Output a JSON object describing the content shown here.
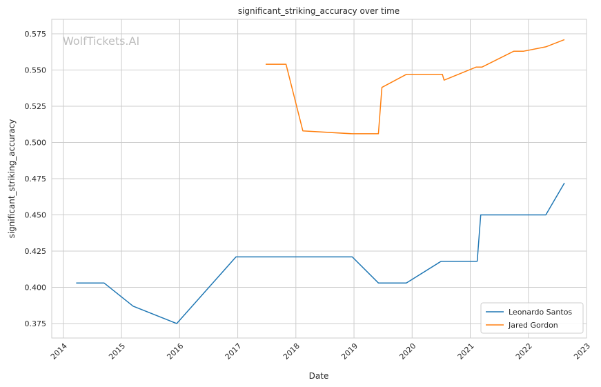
{
  "chart_data": {
    "type": "line",
    "title": "significant_striking_accuracy over time",
    "xlabel": "Date",
    "ylabel": "significant_striking_accuracy",
    "watermark": "WolfTickets.AI",
    "xlim": [
      2013.8,
      2023.0
    ],
    "ylim": [
      0.365,
      0.585
    ],
    "x_ticks": [
      2014,
      2015,
      2016,
      2017,
      2018,
      2019,
      2020,
      2021,
      2022,
      2023
    ],
    "x_tick_labels": [
      "2014",
      "2015",
      "2016",
      "2017",
      "2018",
      "2019",
      "2020",
      "2021",
      "2022",
      "2023"
    ],
    "y_ticks": [
      0.375,
      0.4,
      0.425,
      0.45,
      0.475,
      0.5,
      0.525,
      0.55,
      0.575
    ],
    "y_tick_labels": [
      "0.375",
      "0.400",
      "0.425",
      "0.450",
      "0.475",
      "0.500",
      "0.525",
      "0.550",
      "0.575"
    ],
    "grid": true,
    "legend_position": "lower-right",
    "series": [
      {
        "name": "Leonardo Santos",
        "color": "#1f77b4",
        "x": [
          2014.22,
          2014.7,
          2015.2,
          2015.95,
          2016.97,
          2018.97,
          2019.42,
          2019.9,
          2020.5,
          2021.12,
          2021.18,
          2021.9,
          2022.3,
          2022.62
        ],
        "y": [
          0.403,
          0.403,
          0.387,
          0.375,
          0.421,
          0.421,
          0.403,
          0.403,
          0.418,
          0.418,
          0.45,
          0.45,
          0.45,
          0.472
        ]
      },
      {
        "name": "Jared Gordon",
        "color": "#ff7f0e",
        "x": [
          2017.48,
          2017.83,
          2018.12,
          2018.97,
          2019.42,
          2019.48,
          2019.9,
          2020.52,
          2020.55,
          2021.1,
          2021.2,
          2021.75,
          2021.92,
          2022.3,
          2022.62
        ],
        "y": [
          0.554,
          0.554,
          0.508,
          0.506,
          0.506,
          0.538,
          0.547,
          0.547,
          0.543,
          0.552,
          0.552,
          0.563,
          0.563,
          0.566,
          0.571
        ]
      }
    ]
  }
}
